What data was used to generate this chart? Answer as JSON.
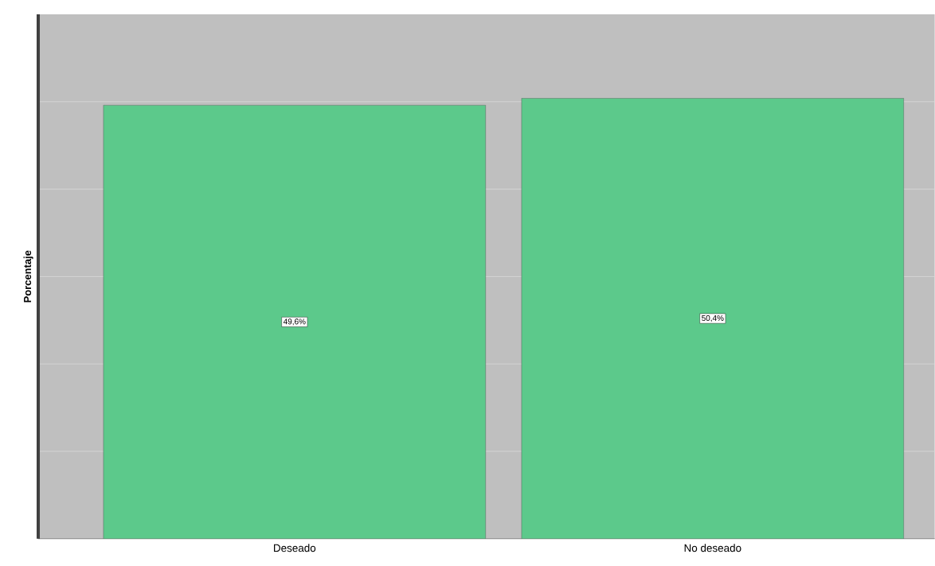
{
  "chart_data": {
    "type": "bar",
    "ylabel": "Porcentaje",
    "categories": [
      "Deseado",
      "No deseado"
    ],
    "values": [
      49.6,
      50.4
    ],
    "value_labels": [
      "49,6%",
      "50,4%"
    ],
    "color": "#5cc98b",
    "ylim": [
      0,
      60
    ],
    "yticks": [
      {
        "value": 0,
        "label": null
      },
      {
        "value": 10,
        "label": null
      },
      {
        "value": 20,
        "label": null
      },
      {
        "value": 30,
        "label": null
      },
      {
        "value": 40,
        "label": null
      },
      {
        "value": 50,
        "label": null
      }
    ],
    "grid": "y",
    "tick_labels": "x"
  }
}
